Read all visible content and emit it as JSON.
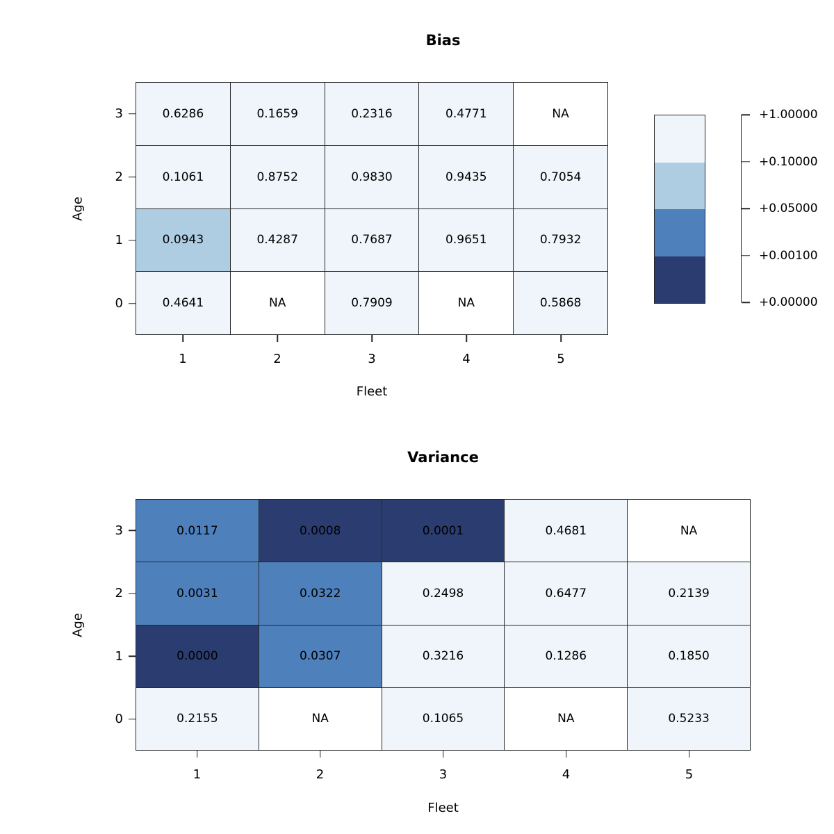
{
  "color_scale": {
    "bins": [
      "#EFF5FA",
      "#AECDE3",
      "#4E80BC",
      "#2B3D70"
    ],
    "thresholds": [
      0.1,
      0.05,
      0.001
    ],
    "na_color": "#FFFFFF",
    "line_color": "#262626"
  },
  "chart_data": [
    {
      "type": "heatmap",
      "title": "Bias",
      "xlabel": "Fleet",
      "ylabel": "Age",
      "x_ticks": [
        "1",
        "2",
        "3",
        "4",
        "5"
      ],
      "y_ticks": [
        "3",
        "2",
        "1",
        "0"
      ],
      "rows": [
        [
          "0.6286",
          "0.1659",
          "0.2316",
          "0.4771",
          "NA"
        ],
        [
          "0.1061",
          "0.8752",
          "0.9830",
          "0.9435",
          "0.7054"
        ],
        [
          "0.0943",
          "0.4287",
          "0.7687",
          "0.9651",
          "0.7932"
        ],
        [
          "0.4641",
          "NA",
          "0.7909",
          "NA",
          "0.5868"
        ]
      ],
      "legend": {
        "position": "right",
        "tick_labels": [
          "+1.00000",
          "+0.10000",
          "+0.05000",
          "+0.00100",
          "+0.00000"
        ]
      }
    },
    {
      "type": "heatmap",
      "title": "Variance",
      "xlabel": "Fleet",
      "ylabel": "Age",
      "x_ticks": [
        "1",
        "2",
        "3",
        "4",
        "5"
      ],
      "y_ticks": [
        "3",
        "2",
        "1",
        "0"
      ],
      "rows": [
        [
          "0.0117",
          "0.0008",
          "0.0001",
          "0.4681",
          "NA"
        ],
        [
          "0.0031",
          "0.0322",
          "0.2498",
          "0.6477",
          "0.2139"
        ],
        [
          "0.0000",
          "0.0307",
          "0.3216",
          "0.1286",
          "0.1850"
        ],
        [
          "0.2155",
          "NA",
          "0.1065",
          "NA",
          "0.5233"
        ]
      ]
    }
  ]
}
